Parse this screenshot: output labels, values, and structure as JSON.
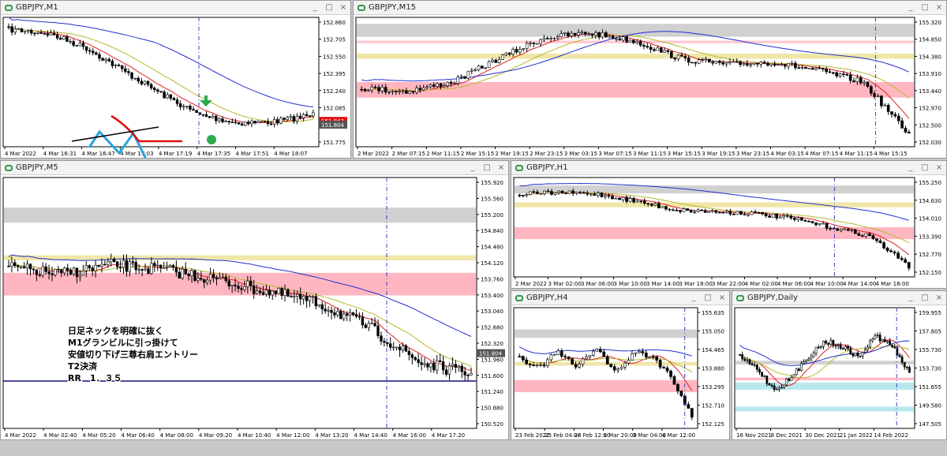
{
  "panels": [
    {
      "title": "GBPJPY,M1",
      "yticks": [
        "152.860",
        "152.705",
        "152.550",
        "152.395",
        "152.240",
        "152.085",
        "151.930",
        "151.775"
      ],
      "xticks": [
        "4 Mar 2022",
        "4 Mar 16:31",
        "4 Mar 16:47",
        "4 Mar 17:03",
        "4 Mar 17:19",
        "4 Mar 17:35",
        "4 Mar 17:51",
        "4 Mar 18:07"
      ],
      "price_tags": [
        "151.843",
        "151.804"
      ]
    },
    {
      "title": "GBPJPY,M15",
      "yticks": [
        "155.320",
        "154.850",
        "154.380",
        "153.910",
        "153.440",
        "152.970",
        "152.500",
        "152.030"
      ],
      "xticks": [
        "2 Mar 2022",
        "2 Mar 07:15",
        "2 Mar 11:15",
        "2 Mar 15:15",
        "2 Mar 19:15",
        "2 Mar 23:15",
        "3 Mar 03:15",
        "3 Mar 07:15",
        "3 Mar 11:15",
        "3 Mar 15:15",
        "3 Mar 19:15",
        "3 Mar 23:15",
        "4 Mar 03:15",
        "4 Mar 07:15",
        "4 Mar 11:15",
        "4 Mar 15:15"
      ],
      "price_tags": []
    },
    {
      "title": "GBPJPY,M5",
      "yticks": [
        "155.920",
        "155.560",
        "155.200",
        "154.840",
        "154.480",
        "154.120",
        "153.760",
        "153.400",
        "153.040",
        "152.680",
        "152.320",
        "151.960",
        "151.600",
        "151.240",
        "150.880",
        "150.520"
      ],
      "xticks": [
        "4 Mar 2022",
        "4 Mar 02:40",
        "4 Mar 05:20",
        "4 Mar 06:40",
        "4 Mar 08:00",
        "4 Mar 09:20",
        "4 Mar 10:40",
        "4 Mar 12:00",
        "4 Mar 13:20",
        "4 Mar 14:40",
        "4 Mar 16:00",
        "4 Mar 17:20"
      ],
      "price_tags": [
        "151.804"
      ],
      "notes": [
        "日足ネックを明確に抜く",
        "M1グランビルに引っ掛けて",
        "安値切り下げ三尊右肩エントリー",
        "T2決済",
        "RR　1．３５"
      ]
    },
    {
      "title": "GBPJPY,H1",
      "yticks": [
        "155.250",
        "154.630",
        "154.010",
        "153.390",
        "152.770",
        "152.150"
      ],
      "xticks": [
        "2 Mar 2022",
        "3 Mar 02:00",
        "3 Mar 06:00",
        "3 Mar 10:00",
        "3 Mar 14:00",
        "3 Mar 18:00",
        "3 Mar 22:00",
        "4 Mar 02:00",
        "4 Mar 06:00",
        "4 Mar 10:00",
        "4 Mar 14:00",
        "4 Mar 18:00"
      ],
      "price_tags": []
    },
    {
      "title": "GBPJPY,H4",
      "yticks": [
        "155.635",
        "155.050",
        "154.465",
        "153.880",
        "153.295",
        "152.710",
        "152.125"
      ],
      "xticks": [
        "23 Feb 2022",
        "25 Feb 04:00",
        "28 Feb 12:00",
        "1 Mar 20:00",
        "3 Mar 04:00",
        "4 Mar 12:00"
      ],
      "price_tags": []
    },
    {
      "title": "GBPJPY,Daily",
      "yticks": [
        "159.955",
        "157.805",
        "155.730",
        "153.730",
        "151.655",
        "149.580",
        "147.505"
      ],
      "xticks": [
        "16 Nov 2021",
        "8 Dec 2021",
        "30 Dec 2021",
        "21 Jan 2022",
        "14 Feb 2022"
      ],
      "price_tags": []
    }
  ]
}
